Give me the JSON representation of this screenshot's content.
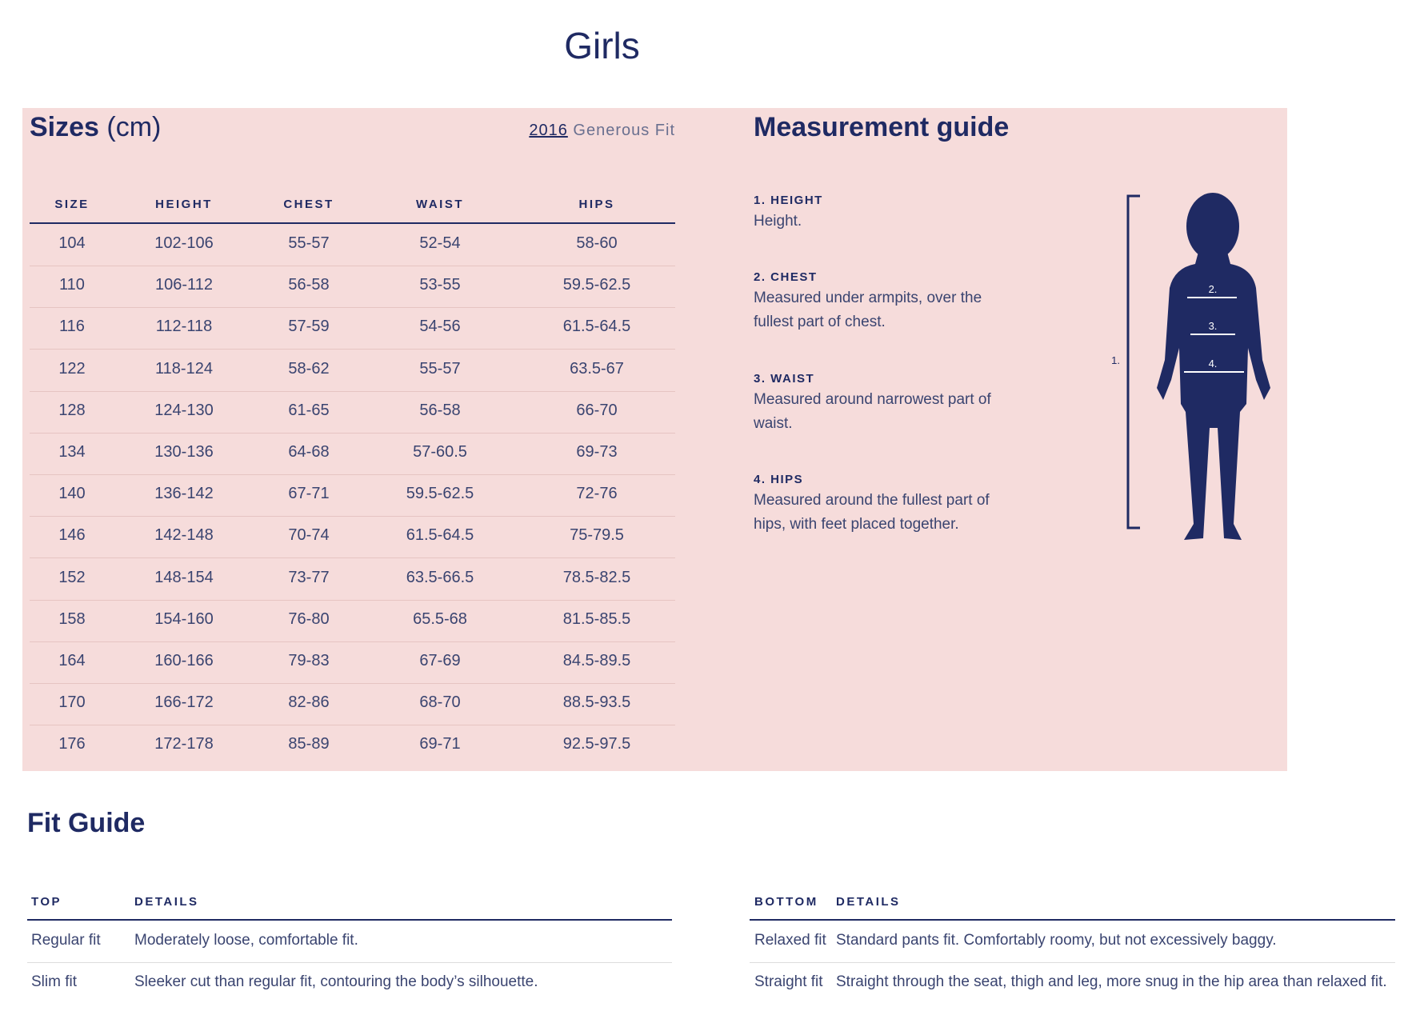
{
  "header": {
    "title": "Girls"
  },
  "sizes": {
    "title": "Sizes",
    "unit": "(cm)",
    "year": "2016",
    "fit_label": "Generous Fit",
    "columns": [
      "SIZE",
      "HEIGHT",
      "CHEST",
      "WAIST",
      "HIPS"
    ],
    "rows": [
      [
        "104",
        "102-106",
        "55-57",
        "52-54",
        "58-60"
      ],
      [
        "110",
        "106-112",
        "56-58",
        "53-55",
        "59.5-62.5"
      ],
      [
        "116",
        "112-118",
        "57-59",
        "54-56",
        "61.5-64.5"
      ],
      [
        "122",
        "118-124",
        "58-62",
        "55-57",
        "63.5-67"
      ],
      [
        "128",
        "124-130",
        "61-65",
        "56-58",
        "66-70"
      ],
      [
        "134",
        "130-136",
        "64-68",
        "57-60.5",
        "69-73"
      ],
      [
        "140",
        "136-142",
        "67-71",
        "59.5-62.5",
        "72-76"
      ],
      [
        "146",
        "142-148",
        "70-74",
        "61.5-64.5",
        "75-79.5"
      ],
      [
        "152",
        "148-154",
        "73-77",
        "63.5-66.5",
        "78.5-82.5"
      ],
      [
        "158",
        "154-160",
        "76-80",
        "65.5-68",
        "81.5-85.5"
      ],
      [
        "164",
        "160-166",
        "79-83",
        "67-69",
        "84.5-89.5"
      ],
      [
        "170",
        "166-172",
        "82-86",
        "68-70",
        "88.5-93.5"
      ],
      [
        "176",
        "172-178",
        "85-89",
        "69-71",
        "92.5-97.5"
      ]
    ]
  },
  "guide": {
    "title": "Measurement guide",
    "items": [
      {
        "label": "1. HEIGHT",
        "text": "Height."
      },
      {
        "label": "2. CHEST",
        "text": "Measured under armpits, over the fullest part of chest."
      },
      {
        "label": "3. WAIST",
        "text": "Measured around narrowest part of waist."
      },
      {
        "label": "4. HIPS",
        "text": "Measured around the fullest part of hips, with feet placed together."
      }
    ],
    "figure_labels": [
      "1.",
      "2.",
      "3.",
      "4."
    ]
  },
  "fit_guide": {
    "title": "Fit Guide",
    "top": {
      "columns": [
        "TOP",
        "DETAILS"
      ],
      "rows": [
        [
          "Regular fit",
          "Moderately loose, comfortable fit."
        ],
        [
          "Slim fit",
          "Sleeker cut than regular fit, contouring the body’s silhouette."
        ]
      ]
    },
    "bottom": {
      "columns": [
        "BOTTOM",
        "DETAILS"
      ],
      "rows": [
        [
          "Relaxed fit",
          "Standard pants fit. Comfortably roomy, but not excessively baggy."
        ],
        [
          "Straight fit",
          "Straight through the seat, thigh and leg, more snug in the hip area than relaxed fit."
        ]
      ]
    }
  }
}
